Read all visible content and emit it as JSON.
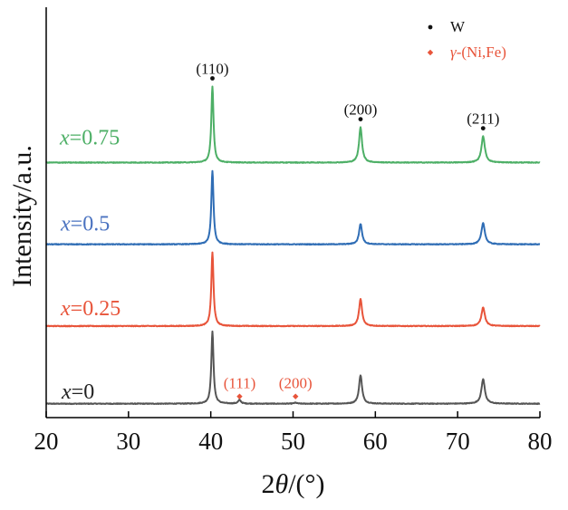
{
  "chart_data": {
    "type": "line",
    "title": "",
    "xlabel_prefix": "2",
    "xlabel_symbol": "θ",
    "xlabel_suffix": "/(°)",
    "ylabel": "Intensity/a.u.",
    "xlim": [
      20,
      80
    ],
    "xticks": [
      "20",
      "30",
      "40",
      "50",
      "60",
      "70",
      "80"
    ],
    "grid": false,
    "series": [
      {
        "name": "x=0",
        "var": "x",
        "value_text": "=0",
        "color": "#555555",
        "label_color": "#222222",
        "baseline": 0,
        "noise": 0.045,
        "peaks": [
          {
            "pos": 40.2,
            "height": 8.8,
            "width": 0.16
          },
          {
            "pos": 43.5,
            "height": 0.45,
            "width": 0.2
          },
          {
            "pos": 50.3,
            "height": 0.12,
            "width": 0.2
          },
          {
            "pos": 58.2,
            "height": 3.5,
            "width": 0.22
          },
          {
            "pos": 73.1,
            "height": 3.0,
            "width": 0.25
          }
        ]
      },
      {
        "name": "x=0.25",
        "var": "x",
        "value_text": "=0.25",
        "color": "#e8543a",
        "label_color": "#e8543a",
        "baseline": 9.5,
        "noise": 0.045,
        "peaks": [
          {
            "pos": 40.2,
            "height": 9.0,
            "width": 0.16
          },
          {
            "pos": 58.2,
            "height": 3.3,
            "width": 0.22
          },
          {
            "pos": 73.1,
            "height": 2.3,
            "width": 0.25
          }
        ]
      },
      {
        "name": "x=0.5",
        "var": "x",
        "value_text": "=0.5",
        "color": "#2f6db5",
        "label_color": "#4a72c0",
        "baseline": 19.5,
        "noise": 0.045,
        "peaks": [
          {
            "pos": 40.2,
            "height": 9.0,
            "width": 0.16
          },
          {
            "pos": 58.2,
            "height": 2.5,
            "width": 0.22
          },
          {
            "pos": 73.1,
            "height": 2.6,
            "width": 0.25
          }
        ]
      },
      {
        "name": "x=0.75",
        "var": "x",
        "value_text": "=0.75",
        "color": "#4daf66",
        "label_color": "#4daf66",
        "baseline": 29.5,
        "noise": 0.045,
        "peaks": [
          {
            "pos": 40.2,
            "height": 9.3,
            "width": 0.16
          },
          {
            "pos": 58.2,
            "height": 4.3,
            "width": 0.22
          },
          {
            "pos": 73.1,
            "height": 3.2,
            "width": 0.25
          }
        ]
      }
    ],
    "ylim": [
      -1.7,
      48.5
    ],
    "annotations": [
      {
        "text": "(110)",
        "x": 40.2,
        "marker": "dot",
        "anchor_series": 3,
        "color": "#111111"
      },
      {
        "text": "(200)",
        "x": 58.2,
        "marker": "dot",
        "anchor_series": 3,
        "color": "#111111"
      },
      {
        "text": "(211)",
        "x": 73.1,
        "marker": "dot",
        "anchor_series": 3,
        "color": "#111111"
      },
      {
        "text": "(111)",
        "x": 43.5,
        "marker": "diamond",
        "anchor_series": 0,
        "color": "#e8543a"
      },
      {
        "text": "(200)",
        "x": 50.3,
        "marker": "diamond",
        "anchor_series": 0,
        "color": "#e8543a"
      }
    ],
    "legend": {
      "placement": "top-right",
      "items": [
        {
          "label": "W",
          "marker": "dot",
          "color": "#111111",
          "italic_prefix": ""
        },
        {
          "label": "-(Ni,Fe)",
          "marker": "diamond",
          "color": "#e8543a",
          "italic_prefix": "γ"
        }
      ]
    }
  }
}
